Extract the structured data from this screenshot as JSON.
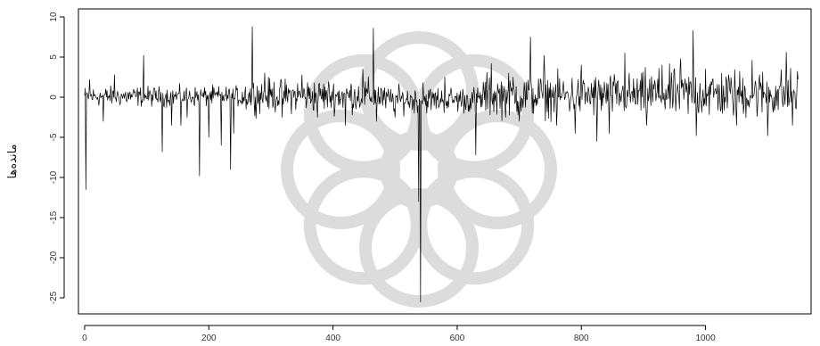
{
  "chart_data": {
    "type": "line",
    "title": "",
    "xlabel": "",
    "ylabel": "ماندەها",
    "xlim": [
      -10,
      1170
    ],
    "ylim": [
      -27,
      11
    ],
    "x_ticks": [
      0,
      200,
      400,
      600,
      800,
      1000
    ],
    "y_ticks": [
      10,
      5,
      0,
      -5,
      -10,
      -15,
      -20,
      -25
    ],
    "series_color": "#000000",
    "watermark": "rosette-logo",
    "n_points": 1150,
    "noise_segments": [
      {
        "from": 0,
        "to": 250,
        "amplitude": 0.6,
        "level": 0.1
      },
      {
        "from": 250,
        "to": 480,
        "amplitude": 1.0,
        "level": 0.2
      },
      {
        "from": 480,
        "to": 640,
        "amplitude": 0.8,
        "level": -0.3
      },
      {
        "from": 640,
        "to": 900,
        "amplitude": 1.3,
        "level": 0.2
      },
      {
        "from": 900,
        "to": 1150,
        "amplitude": 1.5,
        "level": 0.4
      }
    ],
    "spikes": [
      {
        "x": 2,
        "y": -11.5
      },
      {
        "x": 8,
        "y": 2.2
      },
      {
        "x": 30,
        "y": -3.0
      },
      {
        "x": 48,
        "y": 2.8
      },
      {
        "x": 95,
        "y": 5.2
      },
      {
        "x": 125,
        "y": -6.8
      },
      {
        "x": 140,
        "y": -3.5
      },
      {
        "x": 155,
        "y": -3.5
      },
      {
        "x": 165,
        "y": -2.5
      },
      {
        "x": 185,
        "y": -9.8
      },
      {
        "x": 200,
        "y": -5.0
      },
      {
        "x": 220,
        "y": -6.0
      },
      {
        "x": 235,
        "y": -9.0
      },
      {
        "x": 240,
        "y": -4.5
      },
      {
        "x": 270,
        "y": 8.8
      },
      {
        "x": 290,
        "y": 3.0
      },
      {
        "x": 318,
        "y": -2.5
      },
      {
        "x": 350,
        "y": 2.8
      },
      {
        "x": 375,
        "y": -2.5
      },
      {
        "x": 420,
        "y": -3.5
      },
      {
        "x": 448,
        "y": 3.5
      },
      {
        "x": 465,
        "y": 8.6
      },
      {
        "x": 470,
        "y": -3.0
      },
      {
        "x": 500,
        "y": -2.5
      },
      {
        "x": 538,
        "y": -13.0
      },
      {
        "x": 541,
        "y": -25.5
      },
      {
        "x": 545,
        "y": 1.8
      },
      {
        "x": 580,
        "y": 2.5
      },
      {
        "x": 630,
        "y": -7.2
      },
      {
        "x": 655,
        "y": 4.2
      },
      {
        "x": 690,
        "y": 2.5
      },
      {
        "x": 700,
        "y": -3.0
      },
      {
        "x": 718,
        "y": 7.5
      },
      {
        "x": 740,
        "y": 5.2
      },
      {
        "x": 760,
        "y": -3.5
      },
      {
        "x": 790,
        "y": -4.5
      },
      {
        "x": 800,
        "y": 4.0
      },
      {
        "x": 825,
        "y": -5.5
      },
      {
        "x": 845,
        "y": -4.5
      },
      {
        "x": 870,
        "y": 5.5
      },
      {
        "x": 905,
        "y": -3.5
      },
      {
        "x": 930,
        "y": 4.0
      },
      {
        "x": 960,
        "y": 4.8
      },
      {
        "x": 980,
        "y": 8.3
      },
      {
        "x": 985,
        "y": -4.8
      },
      {
        "x": 1000,
        "y": 3.5
      },
      {
        "x": 1050,
        "y": -3.5
      },
      {
        "x": 1075,
        "y": 4.6
      },
      {
        "x": 1100,
        "y": -4.8
      },
      {
        "x": 1130,
        "y": 5.6
      },
      {
        "x": 1140,
        "y": -3.5
      }
    ]
  }
}
